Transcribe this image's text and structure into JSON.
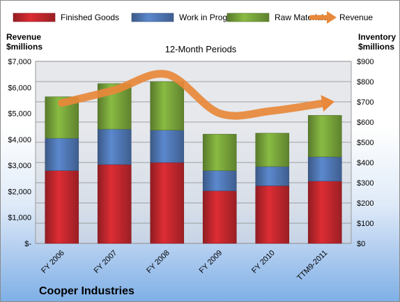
{
  "chart_data": {
    "type": "bar",
    "stacked": true,
    "subtitle": "12-Month Periods",
    "company": "Cooper Industries",
    "ylabel_left": "Revenue\n$millions",
    "ylabel_right": "Inventory\n$millions",
    "categories": [
      "FY 2006",
      "FY 2007",
      "FY 2008",
      "FY 2009",
      "FY 2010",
      "TTM9-2011"
    ],
    "series": [
      {
        "name": "Finished Goods",
        "axis": "right",
        "color": "#c0272d",
        "values": [
          360,
          390,
          400,
          260,
          285,
          308
        ]
      },
      {
        "name": "Work in Progress",
        "axis": "right",
        "color": "#4f76b3",
        "values": [
          160,
          175,
          160,
          100,
          95,
          120
        ]
      },
      {
        "name": "Raw Materials",
        "axis": "right",
        "color": "#77a33a",
        "values": [
          205,
          225,
          240,
          180,
          165,
          205
        ]
      }
    ],
    "line": {
      "name": "Revenue",
      "axis": "left",
      "color": "#e8883a",
      "values": [
        5400,
        5900,
        6500,
        5000,
        5100,
        5400
      ]
    },
    "left_axis": {
      "ylim": [
        0,
        7000
      ],
      "ticks": [
        "$-",
        "$1,000",
        "$2,000",
        "$3,000",
        "$4,000",
        "$5,000",
        "$6,000",
        "$7,000"
      ]
    },
    "right_axis": {
      "ylim": [
        0,
        900
      ],
      "ticks": [
        "$0",
        "$100",
        "$200",
        "$300",
        "$400",
        "$500",
        "$600",
        "$700",
        "$800",
        "$900"
      ]
    },
    "grid": true,
    "legend_position": "top"
  }
}
